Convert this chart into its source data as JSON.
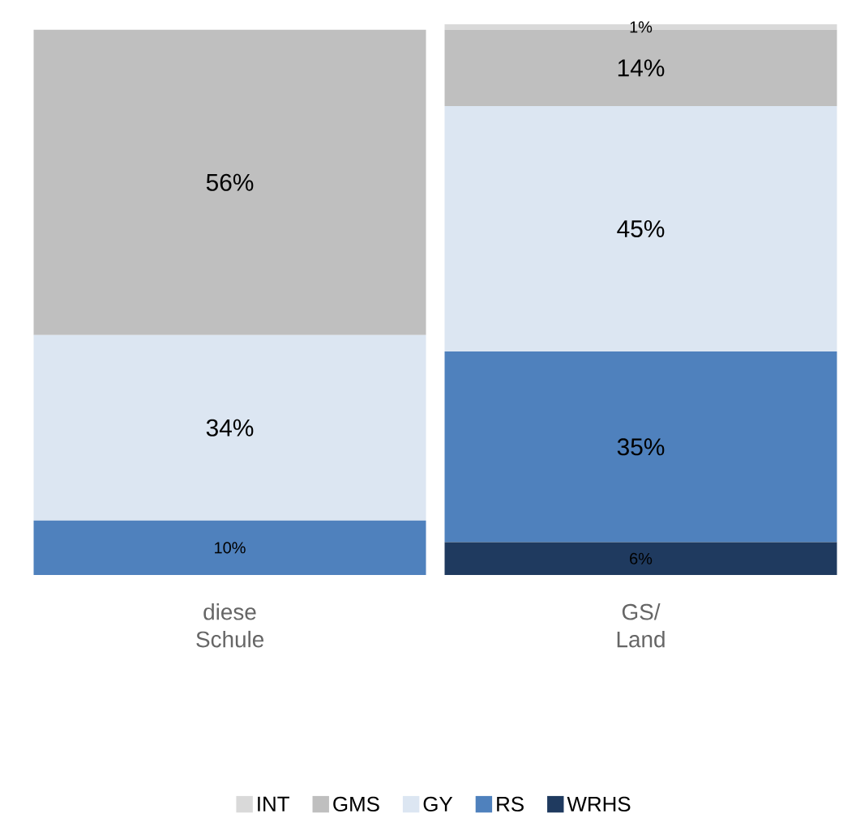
{
  "chart_data": {
    "type": "bar",
    "stacked": true,
    "categories": [
      "diese Schule",
      "GS/ Land"
    ],
    "legend": "bottom",
    "series": [
      {
        "name": "WRHS",
        "color": "#1f3a5f",
        "values": [
          0,
          6
        ],
        "value_labels": [
          null,
          "6%"
        ]
      },
      {
        "name": "RS",
        "color": "#4f81bd",
        "values": [
          10,
          35
        ],
        "value_labels": [
          "10%",
          "35%"
        ]
      },
      {
        "name": "GY",
        "color": "#dce6f2",
        "values": [
          34,
          45
        ],
        "value_labels": [
          "34%",
          "45%"
        ]
      },
      {
        "name": "GMS",
        "color": "#bfbfbf",
        "values": [
          56,
          14
        ],
        "value_labels": [
          "56%",
          "14%"
        ]
      },
      {
        "name": "INT",
        "color": "#d9d9d9",
        "values": [
          0,
          1
        ],
        "value_labels": [
          null,
          "1%"
        ]
      }
    ]
  }
}
